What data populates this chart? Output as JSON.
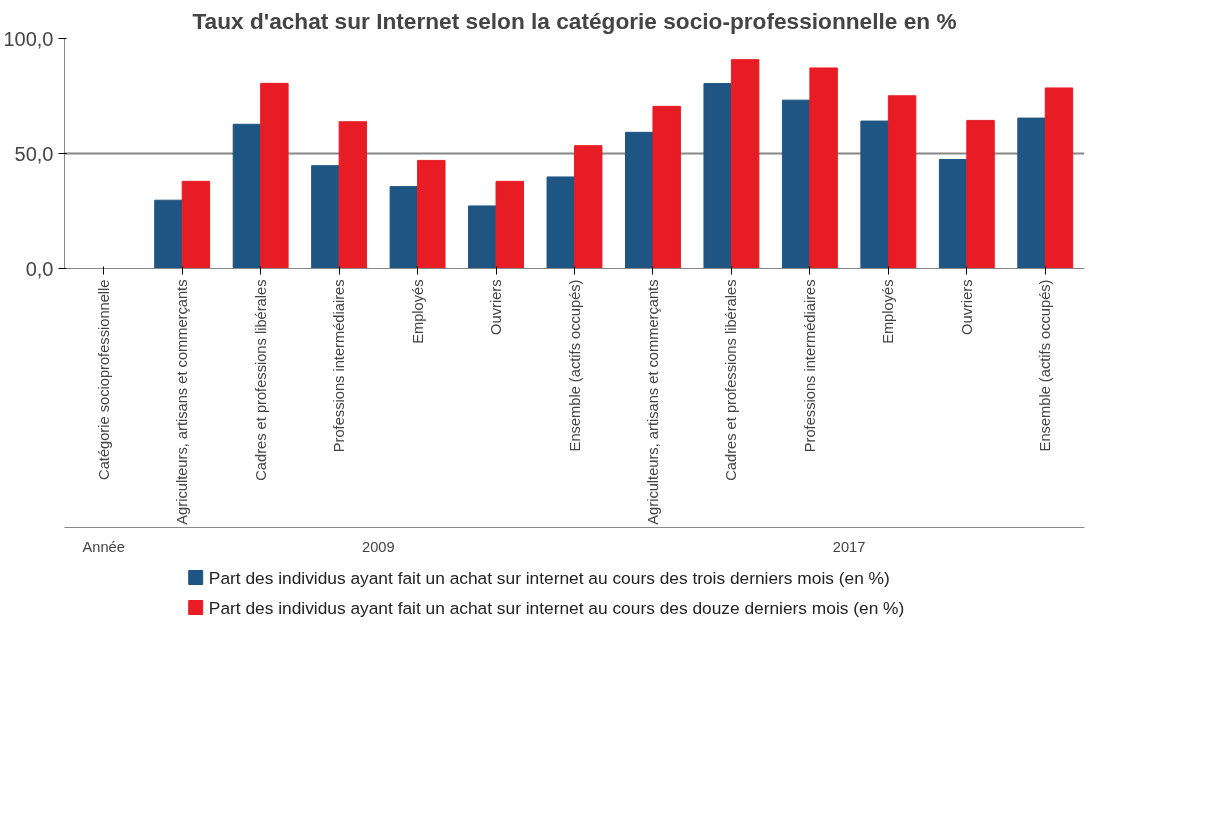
{
  "chart_data": {
    "type": "bar",
    "title": "Taux d'achat sur Internet selon la catégorie socio-professionnelle en %",
    "categories": [
      "Catégorie socioprofessionnelle",
      "Agriculteurs, artisans et commerçants",
      "Cadres et professions libérales",
      "Professions intermédiaires",
      "Employés",
      "Ouvriers",
      "Ensemble (actifs occupés)",
      "Agriculteurs, artisans et commerçants",
      "Cadres et professions libérales",
      "Professions intermédiaires",
      "Employés",
      "Ouvriers",
      "Ensemble (actifs occupés)"
    ],
    "series": [
      {
        "name": "Part des individus ayant fait un achat sur internet au cours des trois derniers mois (en %)",
        "color": "#1f5582",
        "values": [
          null,
          29.7,
          62.7,
          44.7,
          35.6,
          27.2,
          39.8,
          59.2,
          80.4,
          73.2,
          64.1,
          47.4,
          65.4
        ]
      },
      {
        "name": "Part des individus ayant fait un achat sur internet au cours des douze derniers mois (en %)",
        "color": "#e81c24",
        "values": [
          null,
          37.9,
          80.5,
          63.8,
          47.0,
          37.9,
          53.4,
          70.5,
          90.8,
          87.2,
          75.1,
          64.4,
          78.5
        ]
      }
    ],
    "annotations": [
      "Année",
      "2009",
      "2017"
    ],
    "ylim": [
      0,
      100
    ],
    "yticks": [
      {
        "value": 0,
        "label": "0,0"
      },
      {
        "value": 50,
        "label": "50,0"
      },
      {
        "value": 100,
        "label": "100,0"
      }
    ],
    "grid": "y",
    "legend": "bottom"
  }
}
